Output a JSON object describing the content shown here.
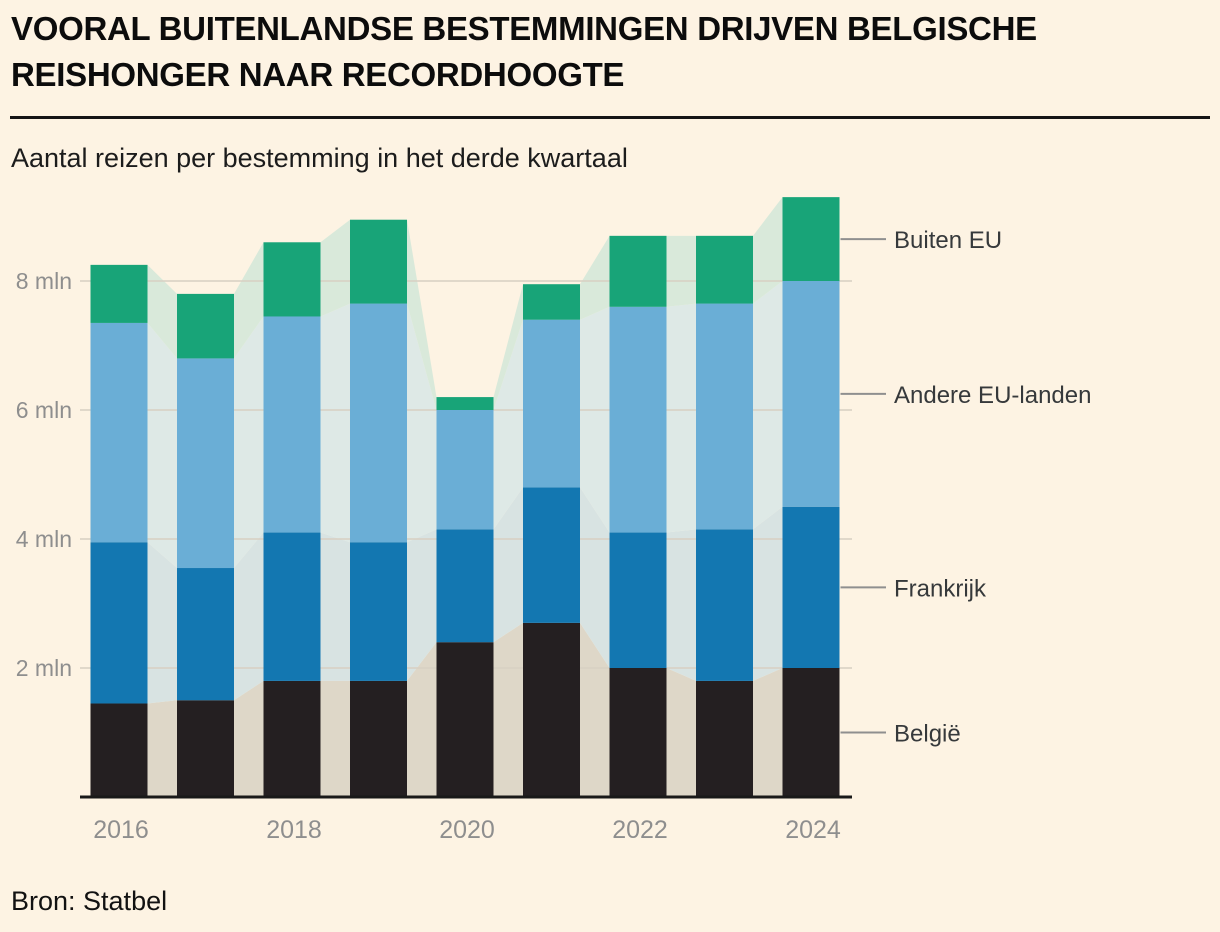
{
  "title": "VOORAL BUITENLANDSE BESTEMMINGEN DRIJVEN BELGISCHE REISHONGER NAAR RECORDHOOGTE",
  "subtitle": "Aantal reizen per bestemming in het derde kwartaal",
  "source": "Bron: Statbel",
  "colors": {
    "background": "#fdf3e3",
    "gridline": "#d7d0c2",
    "axis_line": "#191919",
    "tick_text": "#8e8e8e",
    "legend_text": "#36393b",
    "leader_line": "#8f8f8f"
  },
  "chart_data": {
    "type": "bar",
    "stacked": true,
    "title": "Aantal reizen per bestemming in het derde kwartaal",
    "unit": "mln reizen",
    "categories": [
      "2016",
      "2017",
      "2018",
      "2019",
      "2020",
      "2021",
      "2022",
      "2023",
      "2024"
    ],
    "x_tick_labels": [
      "2016",
      "2018",
      "2020",
      "2022",
      "2024"
    ],
    "series": [
      {
        "name": "België",
        "color": "#241f21",
        "muted_color": "#ded7c8",
        "values": [
          1.45,
          1.5,
          1.8,
          1.8,
          2.4,
          2.7,
          2.0,
          1.8,
          2.0
        ]
      },
      {
        "name": "Frankrijk",
        "color": "#1377b1",
        "muted_color": "#d8e3e2",
        "values": [
          2.5,
          2.05,
          2.3,
          2.15,
          1.75,
          2.1,
          2.1,
          2.35,
          2.5
        ]
      },
      {
        "name": "Andere EU-landen",
        "color": "#6aaed6",
        "muted_color": "#dee9e6",
        "values": [
          3.4,
          3.25,
          3.35,
          3.7,
          1.85,
          2.6,
          3.5,
          3.5,
          3.5
        ]
      },
      {
        "name": "Buiten EU",
        "color": "#18a478",
        "muted_color": "#d9e9da",
        "values": [
          0.9,
          1.0,
          1.15,
          1.3,
          0.2,
          0.55,
          1.1,
          1.05,
          1.3
        ]
      }
    ],
    "totals": [
      8.25,
      7.8,
      8.6,
      8.95,
      6.2,
      7.95,
      8.7,
      8.7,
      9.3
    ],
    "y_ticks": [
      {
        "value": 2,
        "label": "2 mln"
      },
      {
        "value": 4,
        "label": "4 mln"
      },
      {
        "value": 6,
        "label": "6 mln"
      },
      {
        "value": 8,
        "label": "8 mln"
      }
    ],
    "ylim": [
      0,
      9.4
    ],
    "grid": true,
    "legend_position": "right",
    "background_style": "muted stacked area behind bars connecting bar corners"
  }
}
